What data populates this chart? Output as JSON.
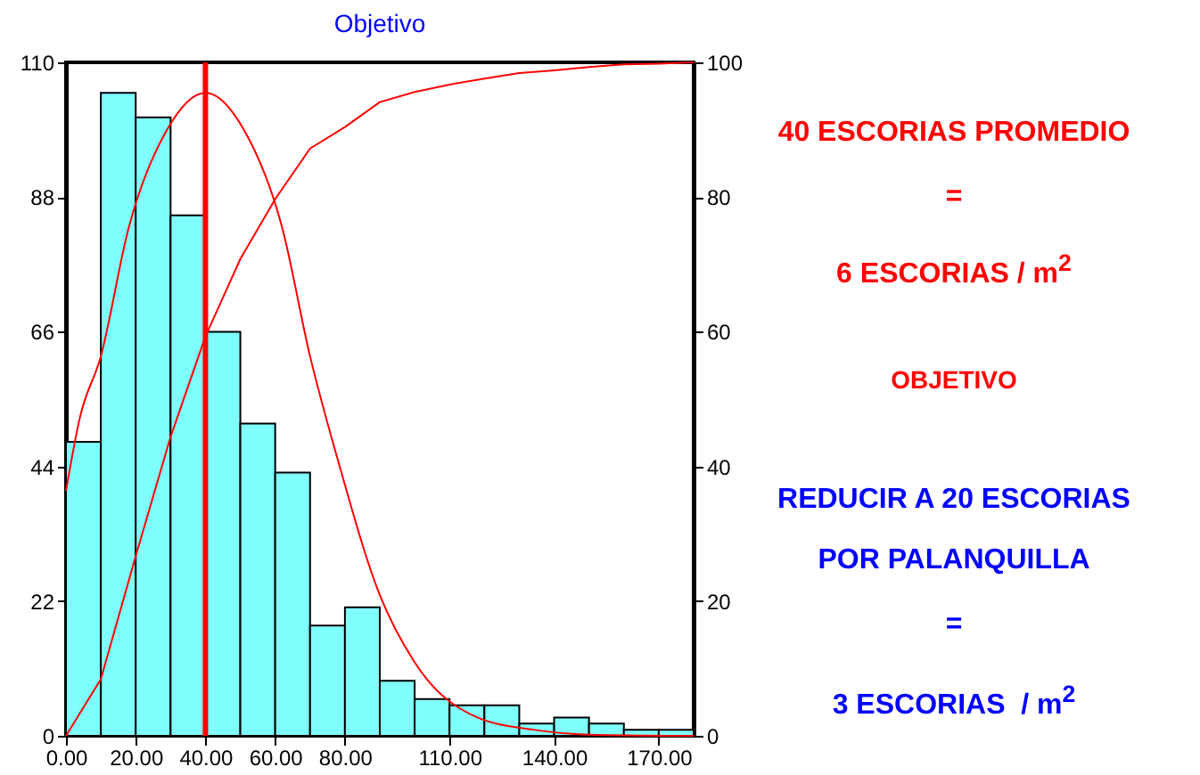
{
  "chart_data": {
    "type": "histogram",
    "title": "Objetivo",
    "bins": [
      0,
      10,
      20,
      30,
      40,
      50,
      60,
      70,
      80,
      90,
      100,
      110,
      120,
      130,
      140,
      150,
      160,
      170,
      180
    ],
    "values": [
      48,
      105,
      101,
      85,
      66,
      51,
      43,
      18,
      21,
      9,
      6,
      5,
      5,
      2,
      3,
      2,
      1,
      1
    ],
    "color": "#80ffff",
    "series": [
      {
        "type": "line",
        "color": "#ff0000",
        "x": [
          0,
          4,
          10,
          18,
          29,
          40,
          51,
          62,
          70,
          78,
          90,
          100,
          118,
          134,
          150,
          180
        ],
        "values": [
          40,
          52,
          62,
          83,
          99,
          105,
          99,
          83,
          62,
          45,
          23,
          12,
          3,
          1,
          0.2,
          0
        ]
      },
      {
        "type": "line",
        "axis": "y2",
        "color": "#ff0000",
        "x": [
          0,
          10,
          20,
          30,
          40,
          50,
          60,
          70,
          80,
          90,
          100,
          110,
          120,
          130,
          140,
          150,
          160,
          170,
          180
        ],
        "values": [
          0,
          8.4,
          26.7,
          44.4,
          59.3,
          70.8,
          79.7,
          87.2,
          90.4,
          94.1,
          95.6,
          96.7,
          97.6,
          98.4,
          98.8,
          99.3,
          99.7,
          99.8,
          100
        ]
      }
    ],
    "xlim": [
      0,
      180
    ],
    "xticks": [
      {
        "value": 0,
        "label": "0.00"
      },
      {
        "value": 20,
        "label": "20.00"
      },
      {
        "value": 40,
        "label": "40.00"
      },
      {
        "value": 60,
        "label": "60.00"
      },
      {
        "value": 80,
        "label": "80.00"
      },
      {
        "value": 110,
        "label": "110.00"
      },
      {
        "value": 140,
        "label": "140.00"
      },
      {
        "value": 170,
        "label": "170.00"
      }
    ],
    "ylim": [
      0,
      110
    ],
    "yticks": [
      0,
      22,
      44,
      66,
      88,
      110
    ],
    "y2lim": [
      0,
      100
    ],
    "y2ticks": [
      0,
      20,
      40,
      60,
      80,
      100
    ],
    "ref_lines": [
      {
        "axis": "x",
        "value": 40,
        "color": "#ff0000"
      }
    ],
    "grid": false,
    "annotations": [
      "40 ESCORIAS PROMEDIO",
      "=",
      "6 ESCORIAS / m$^{2}$",
      "OBJETIVO",
      "REDUCIR A 20 ESCORIAS",
      "POR PALANQUILLA",
      "=",
      "3 ESCORIAS  / m$^{2}$"
    ]
  }
}
